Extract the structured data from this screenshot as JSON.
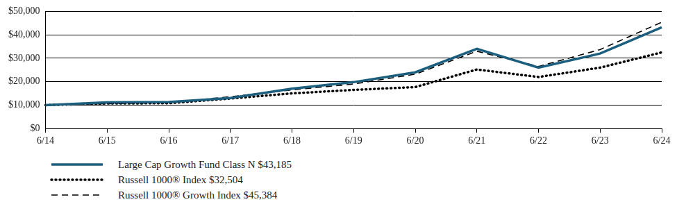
{
  "chart_data": {
    "type": "line",
    "categories": [
      "6/14",
      "6/15",
      "6/16",
      "6/17",
      "6/18",
      "6/19",
      "6/20",
      "6/21",
      "6/22",
      "6/23",
      "6/24"
    ],
    "series": [
      {
        "name": "Large Cap Growth Fund Class N $43,185",
        "color": "#1b5e7e",
        "line_style": "solid",
        "values": [
          10000,
          11200,
          11300,
          13000,
          17000,
          19800,
          24000,
          34000,
          26000,
          32000,
          43185
        ]
      },
      {
        "name": "Russell 1000® Index $32,504",
        "color": "#000000",
        "line_style": "dotted",
        "values": [
          10000,
          10700,
          10800,
          12800,
          15000,
          16500,
          17700,
          25200,
          22000,
          26000,
          32504
        ]
      },
      {
        "name": "Russell 1000® Growth Index $45,384",
        "color": "#000000",
        "line_style": "dashed",
        "values": [
          10000,
          10600,
          11000,
          13600,
          16500,
          19000,
          23200,
          33000,
          26500,
          33700,
          45384
        ]
      }
    ],
    "ylim": [
      0,
      50000
    ],
    "yticks": [
      {
        "value": 0,
        "label": "$0"
      },
      {
        "value": 10000,
        "label": "$10,000"
      },
      {
        "value": 20000,
        "label": "$20,000"
      },
      {
        "value": 30000,
        "label": "$30,000"
      },
      {
        "value": 40000,
        "label": "$40,000"
      },
      {
        "value": 50000,
        "label": "$50,000"
      }
    ],
    "grid": true,
    "legend": "bottom-left"
  }
}
